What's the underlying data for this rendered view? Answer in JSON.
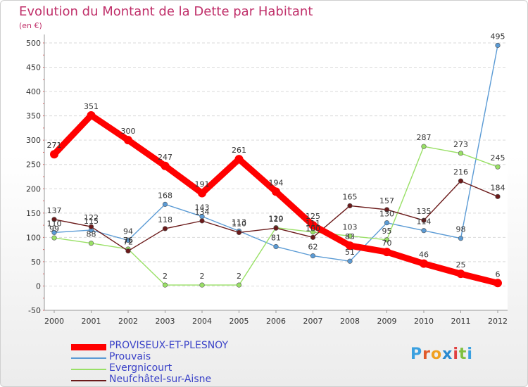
{
  "title": "Evolution du Montant de la Dette par Habitant",
  "unit": "(en €)",
  "logo": "Proxiti",
  "chart_data": {
    "type": "line",
    "x": [
      2000,
      2001,
      2002,
      2003,
      2004,
      2005,
      2006,
      2007,
      2008,
      2009,
      2010,
      2011,
      2012
    ],
    "ylim": [
      -50,
      500
    ],
    "yticks": [
      -50,
      0,
      50,
      100,
      150,
      200,
      250,
      300,
      350,
      400,
      450,
      500
    ],
    "grid": "horizontal dashed",
    "legend_position": "bottom-left",
    "series": [
      {
        "name": "PROVISEUX-ET-PLESNOY",
        "color": "#ff0000",
        "values": [
          271,
          351,
          300,
          247,
          191,
          261,
          194,
          125,
          83,
          70,
          46,
          25,
          6
        ]
      },
      {
        "name": "Prouvais",
        "color": "#5b9bd5",
        "values": [
          110,
          115,
          94,
          168,
          143,
          113,
          81,
          62,
          51,
          130,
          114,
          98,
          495
        ]
      },
      {
        "name": "Evergnicourt",
        "color": "#99e066",
        "values": [
          99,
          88,
          76,
          2,
          2,
          2,
          120,
          111,
          103,
          95,
          287,
          273,
          245
        ]
      },
      {
        "name": "Neufchâtel-sur-Aisne",
        "color": "#6b1a1a",
        "values": [
          137,
          122,
          72,
          118,
          134,
          110,
          119,
          100,
          165,
          157,
          135,
          216,
          184
        ]
      }
    ],
    "data_labels": [
      {
        "series": 0,
        "labels": [
          "271",
          "351",
          "300",
          "247",
          "191",
          "261",
          "194",
          "125",
          "83",
          "70",
          "46",
          "25",
          "6"
        ]
      },
      {
        "series": 1,
        "labels": [
          "110",
          "115",
          "94",
          "168",
          "143",
          "113",
          "81",
          "62",
          "51",
          "130",
          "114",
          "98",
          "495"
        ]
      },
      {
        "series": 2,
        "labels": [
          "99",
          "88",
          "76",
          "2",
          "2",
          "2",
          "120",
          "111",
          "103",
          "95",
          "287",
          "273",
          "245"
        ]
      },
      {
        "series": 3,
        "labels": [
          "137",
          "122",
          "72",
          "118",
          "134",
          "110",
          "119",
          "100",
          "165",
          "157",
          "135",
          "216",
          "184"
        ]
      }
    ]
  }
}
